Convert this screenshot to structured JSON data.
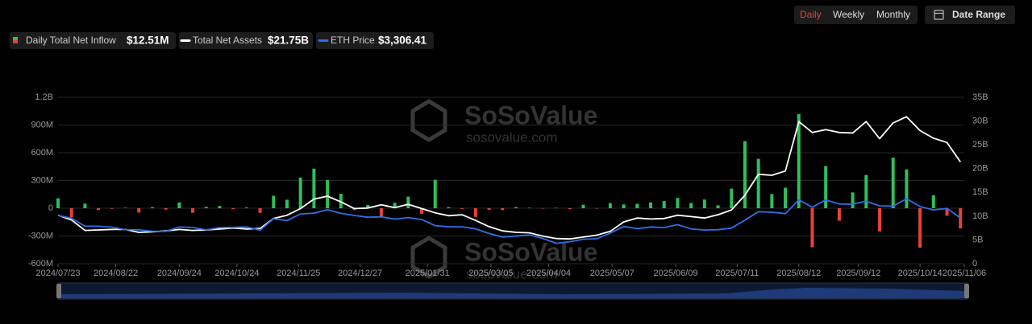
{
  "controls": {
    "periods": [
      "Daily",
      "Weekly",
      "Monthly"
    ],
    "active_period": 0,
    "date_range": "Date Range"
  },
  "chart_data": {
    "type": "bar-line",
    "watermark": "SoSoValue",
    "watermark_url": "sosovalue.com",
    "x": [
      "2024/07/23",
      "2024/07/30",
      "2024/08/06",
      "2024/08/13",
      "2024/08/20",
      "2024/08/27",
      "2024/09/03",
      "2024/09/10",
      "2024/09/17",
      "2024/09/24",
      "2024/10/01",
      "2024/10/08",
      "2024/10/15",
      "2024/10/22",
      "2024/10/29",
      "2024/11/05",
      "2024/11/12",
      "2024/11/19",
      "2024/11/26",
      "2024/12/03",
      "2024/12/10",
      "2024/12/17",
      "2024/12/24",
      "2024/12/31",
      "2025/01/07",
      "2025/01/14",
      "2025/01/21",
      "2025/01/28",
      "2025/02/04",
      "2025/02/11",
      "2025/02/18",
      "2025/02/25",
      "2025/03/04",
      "2025/03/11",
      "2025/03/18",
      "2025/03/25",
      "2025/04/01",
      "2025/04/08",
      "2025/04/15",
      "2025/04/22",
      "2025/04/29",
      "2025/05/06",
      "2025/05/13",
      "2025/05/20",
      "2025/05/27",
      "2025/06/03",
      "2025/06/10",
      "2025/06/17",
      "2025/06/24",
      "2025/07/01",
      "2025/07/08",
      "2025/07/15",
      "2025/07/22",
      "2025/07/29",
      "2025/08/05",
      "2025/08/12",
      "2025/08/19",
      "2025/08/26",
      "2025/09/02",
      "2025/09/09",
      "2025/09/16",
      "2025/09/23",
      "2025/09/30",
      "2025/10/07",
      "2025/10/14",
      "2025/10/21",
      "2025/10/28",
      "2025/11/04"
    ],
    "xlim": [
      "2024/07/23",
      "2025/11/06"
    ],
    "xticks": [
      "2024/07/23",
      "2024/08/22",
      "2024/09/24",
      "2024/10/24",
      "2024/11/25",
      "2024/12/27",
      "2025/01/31",
      "2025/03/05",
      "2025/04/04",
      "2025/05/07",
      "2025/06/09",
      "2025/07/11",
      "2025/08/12",
      "2025/09/12",
      "2025/10/14",
      "2025/11/06"
    ],
    "ylim": [
      -600,
      1200
    ],
    "yticks": [
      {
        "value": 1200,
        "label": "1.2B"
      },
      {
        "value": 900,
        "label": "900M"
      },
      {
        "value": 600,
        "label": "600M"
      },
      {
        "value": 300,
        "label": "300M"
      },
      0,
      {
        "value": -300,
        "label": "-300M"
      },
      {
        "value": -600,
        "label": "-600M"
      }
    ],
    "y2lim": [
      0,
      35
    ],
    "y2ticks": [
      {
        "value": 35,
        "label": "35B"
      },
      {
        "value": 30,
        "label": "30B"
      },
      {
        "value": 25,
        "label": "25B"
      },
      {
        "value": 20,
        "label": "20B"
      },
      {
        "value": 15,
        "label": "15B"
      },
      {
        "value": 10,
        "label": "10B"
      },
      {
        "value": 5,
        "label": "5B"
      },
      0
    ],
    "y3lim": [
      0,
      12000
    ],
    "grid": true,
    "series": [
      {
        "name": "Daily Total Net Inflow",
        "latest": "$12.51M",
        "type": "bar",
        "color": "#2fbf5b",
        "negative_color": "#e5413a",
        "values": [
          107,
          -98,
          49,
          -20,
          -6,
          5,
          -47,
          11,
          -15,
          62,
          -49,
          14,
          24,
          -11,
          8,
          -50,
          135,
          92,
          332,
          428,
          305,
          156,
          -20,
          36,
          -87,
          59,
          125,
          -60,
          307,
          12,
          -8,
          -94,
          -18,
          -20,
          12,
          5,
          -3,
          4,
          -11,
          38,
          -3,
          55,
          41,
          48,
          63,
          78,
          111,
          57,
          94,
          31,
          212,
          726,
          534,
          153,
          222,
          1019,
          -422,
          456,
          -135,
          171,
          360,
          -251,
          547,
          420,
          -428,
          141,
          -81,
          -219
        ]
      },
      {
        "name": "Total Net Assets",
        "latest": "$21.75B",
        "type": "line",
        "axis": "y2",
        "color": "#ffffff",
        "values": [
          10.2,
          9.2,
          7.0,
          7.1,
          7.2,
          7.2,
          6.6,
          6.7,
          6.9,
          7.2,
          7.0,
          7.1,
          7.3,
          7.5,
          7.3,
          7.4,
          9.5,
          10.2,
          11.6,
          13.6,
          14.2,
          13.0,
          11.6,
          11.7,
          12.4,
          11.8,
          12.5,
          11.6,
          10.7,
          10.1,
          10.3,
          9.1,
          7.8,
          6.9,
          6.6,
          6.5,
          5.8,
          5.3,
          5.2,
          5.6,
          6.0,
          6.8,
          8.8,
          9.6,
          9.4,
          9.5,
          10.2,
          9.9,
          9.6,
          10.3,
          11.3,
          14.4,
          18.8,
          18.6,
          19.5,
          29.9,
          27.6,
          28.2,
          27.6,
          27.5,
          29.9,
          26.3,
          29.6,
          30.9,
          28.0,
          26.4,
          25.5,
          21.4
        ]
      },
      {
        "name": "ETH Price",
        "latest": "$3,306.41",
        "type": "line",
        "axis": "y3",
        "color": "#2f6fe6",
        "values": [
          3480,
          3280,
          2700,
          2700,
          2640,
          2460,
          2440,
          2340,
          2330,
          2650,
          2610,
          2440,
          2610,
          2620,
          2650,
          2420,
          3240,
          3110,
          3590,
          3640,
          3900,
          3630,
          3480,
          3350,
          3380,
          3220,
          3330,
          3180,
          2740,
          2660,
          2660,
          2510,
          2180,
          1920,
          1990,
          2070,
          1820,
          1470,
          1590,
          1760,
          1800,
          2210,
          2680,
          2530,
          2650,
          2600,
          2820,
          2510,
          2430,
          2450,
          2570,
          3140,
          3750,
          3710,
          3610,
          4600,
          4070,
          4600,
          4300,
          4300,
          4500,
          4170,
          4150,
          4690,
          4120,
          3880,
          3990,
          3300
        ]
      }
    ]
  }
}
